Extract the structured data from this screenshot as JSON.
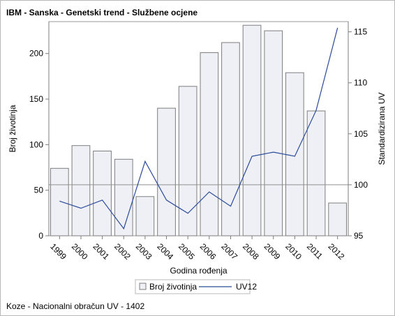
{
  "title": "IBM - Sanska - Genetski trend - Službene ocjene",
  "footnote": "Koze - Nacionalni obračun UV - 1402",
  "chart_data": {
    "type": "bar",
    "categories": [
      "1999",
      "2000",
      "2001",
      "2002",
      "2003",
      "2004",
      "2005",
      "2006",
      "2007",
      "2008",
      "2009",
      "2010",
      "2011",
      "2012"
    ],
    "xlabel": "Godina rođenja",
    "ylabel": "Broj životinja",
    "y2label": "Standardizirana UV",
    "ylim": [
      0,
      235
    ],
    "y2lim": [
      95,
      116
    ],
    "y_ticks": [
      0,
      50,
      100,
      150,
      200
    ],
    "y2_ticks": [
      95,
      100,
      105,
      110,
      115
    ],
    "reference_line_y2": 100,
    "grid": false,
    "legend_position": "bottom",
    "series": [
      {
        "name": "Broj životinja",
        "kind": "bar",
        "axis": "left",
        "color": "#eef0f6",
        "values": [
          74,
          99,
          93,
          84,
          43,
          140,
          164,
          201,
          212,
          231,
          225,
          179,
          137,
          36
        ]
      },
      {
        "name": "UV12",
        "kind": "line",
        "axis": "right",
        "color": "#2a4a9a",
        "values": [
          98.4,
          97.7,
          98.5,
          95.7,
          102.3,
          98.5,
          97.2,
          99.3,
          97.9,
          102.8,
          103.2,
          102.8,
          107.3,
          115.4
        ]
      }
    ]
  }
}
